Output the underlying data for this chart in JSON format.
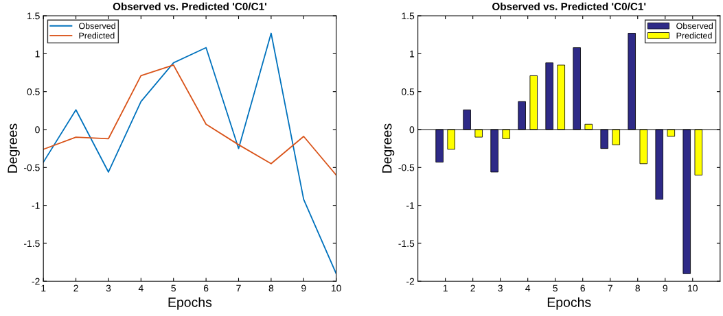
{
  "chart_data": [
    {
      "type": "line",
      "title": "Observed vs. Predicted 'C0/C1'",
      "xlabel": "Epochs",
      "ylabel": "Degrees",
      "x": [
        1,
        2,
        3,
        4,
        5,
        6,
        7,
        8,
        9,
        10
      ],
      "xlim": [
        1,
        10
      ],
      "xticks": [
        1,
        2,
        3,
        4,
        5,
        6,
        7,
        8,
        9,
        10
      ],
      "ylim": [
        -2,
        1.5
      ],
      "yticks": [
        -2,
        -1.5,
        -1,
        -0.5,
        0,
        0.5,
        1,
        1.5
      ],
      "legend": "top left",
      "grid": false,
      "series": [
        {
          "name": "Observed",
          "color": "#0072bd",
          "values": [
            -0.43,
            0.26,
            -0.56,
            0.37,
            0.88,
            1.08,
            -0.25,
            1.27,
            -0.92,
            -1.9
          ]
        },
        {
          "name": "Predicted",
          "color": "#d95319",
          "values": [
            -0.26,
            -0.1,
            -0.12,
            0.71,
            0.85,
            0.07,
            -0.2,
            -0.45,
            -0.09,
            -0.6
          ]
        }
      ]
    },
    {
      "type": "bar",
      "title": "Observed vs. Predicted 'C0/C1'",
      "xlabel": "Epochs",
      "ylabel": "Degrees",
      "x": [
        1,
        2,
        3,
        4,
        5,
        6,
        7,
        8,
        9,
        10
      ],
      "xlim": [
        0,
        11
      ],
      "xticks": [
        1,
        2,
        3,
        4,
        5,
        6,
        7,
        8,
        9,
        10
      ],
      "ylim": [
        -2,
        1.5
      ],
      "yticks": [
        -2,
        -1.5,
        -1,
        -0.5,
        0,
        0.5,
        1,
        1.5
      ],
      "legend": "top right",
      "grid": false,
      "ref_lines": [
        {
          "axis": "y",
          "value": 0,
          "color": "#000000"
        }
      ],
      "series": [
        {
          "name": "Observed",
          "color": "#2e2a87",
          "values": [
            -0.43,
            0.26,
            -0.56,
            0.37,
            0.88,
            1.08,
            -0.25,
            1.27,
            -0.92,
            -1.9
          ]
        },
        {
          "name": "Predicted",
          "color": "#ffff00",
          "values": [
            -0.26,
            -0.1,
            -0.12,
            0.71,
            0.85,
            0.07,
            -0.2,
            -0.45,
            -0.09,
            -0.6
          ]
        }
      ]
    }
  ]
}
